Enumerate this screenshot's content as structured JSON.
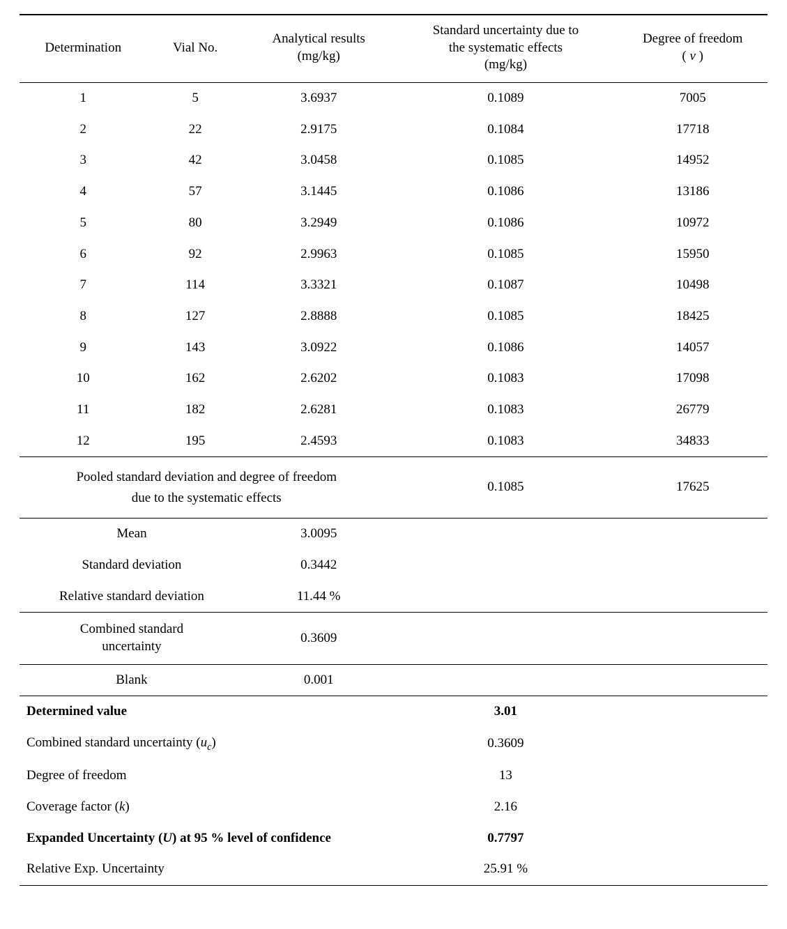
{
  "header": {
    "determination": "Determination",
    "vial_no": "Vial No.",
    "analytical_results": "Analytical results (mg/kg)",
    "std_unc_systematic": "Standard uncertainty due to the systematic effects (mg/kg)",
    "dof": "Degree of freedom",
    "dof_nu": "ν"
  },
  "rows": [
    {
      "det": "1",
      "vial": "5",
      "result": "3.6937",
      "unc": "0.1089",
      "dof": "7005"
    },
    {
      "det": "2",
      "vial": "22",
      "result": "2.9175",
      "unc": "0.1084",
      "dof": "17718"
    },
    {
      "det": "3",
      "vial": "42",
      "result": "3.0458",
      "unc": "0.1085",
      "dof": "14952"
    },
    {
      "det": "4",
      "vial": "57",
      "result": "3.1445",
      "unc": "0.1086",
      "dof": "13186"
    },
    {
      "det": "5",
      "vial": "80",
      "result": "3.2949",
      "unc": "0.1086",
      "dof": "10972"
    },
    {
      "det": "6",
      "vial": "92",
      "result": "2.9963",
      "unc": "0.1085",
      "dof": "15950"
    },
    {
      "det": "7",
      "vial": "114",
      "result": "3.3321",
      "unc": "0.1087",
      "dof": "10498"
    },
    {
      "det": "8",
      "vial": "127",
      "result": "2.8888",
      "unc": "0.1085",
      "dof": "18425"
    },
    {
      "det": "9",
      "vial": "143",
      "result": "3.0922",
      "unc": "0.1086",
      "dof": "14057"
    },
    {
      "det": "10",
      "vial": "162",
      "result": "2.6202",
      "unc": "0.1083",
      "dof": "17098"
    },
    {
      "det": "11",
      "vial": "182",
      "result": "2.6281",
      "unc": "0.1083",
      "dof": "26779"
    },
    {
      "det": "12",
      "vial": "195",
      "result": "2.4593",
      "unc": "0.1083",
      "dof": "34833"
    }
  ],
  "pooled": {
    "label_line1": "Pooled standard deviation and degree of freedom",
    "label_line2": "due to the systematic effects",
    "unc": "0.1085",
    "dof": "17625"
  },
  "stats": {
    "mean_label": "Mean",
    "mean": "3.0095",
    "sd_label": "Standard deviation",
    "sd": "0.3442",
    "rsd_label": "Relative standard deviation",
    "rsd": "11.44 %",
    "csu_label_line1": "Combined standard",
    "csu_label_line2": "uncertainty",
    "csu": "0.3609",
    "blank_label": "Blank",
    "blank": "0.001"
  },
  "summary": {
    "determined_value_label": "Determined value",
    "determined_value": "3.01",
    "csu_label_pre": "Combined standard uncertainty (",
    "csu_sym": "u",
    "csu_sub": "c",
    "csu_label_post": ")",
    "csu": "0.3609",
    "dof_label": "Degree of freedom",
    "dof": "13",
    "k_label_pre": "Coverage factor (",
    "k_sym": "k",
    "k_label_post": ")",
    "k": "2.16",
    "eu_label_pre": "Expanded Uncertainty (",
    "eu_sym": "U",
    "eu_label_post": ") at 95 % level of confidence",
    "eu": "0.7797",
    "reu_label": "Relative Exp. Uncertainty",
    "reu": "25.91 %"
  }
}
